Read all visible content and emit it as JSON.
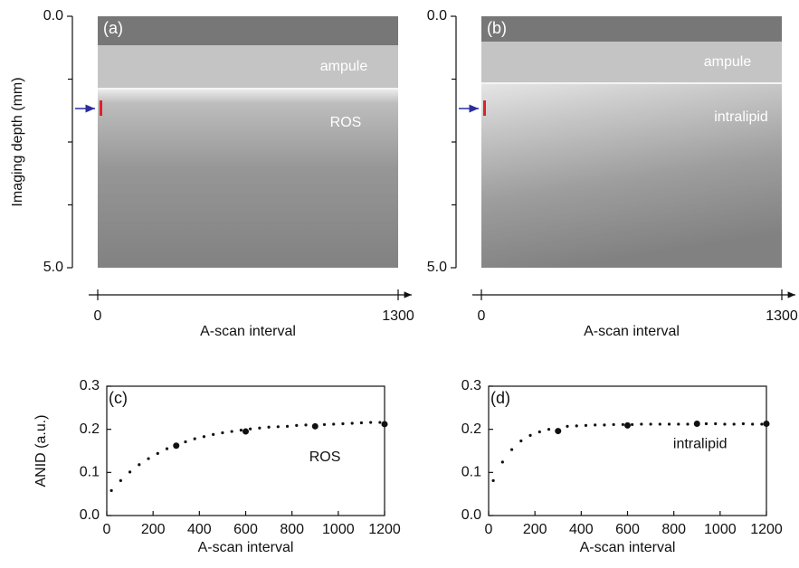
{
  "y_axis_label": "Imaging depth (mm)",
  "images": [
    {
      "label": "(a)",
      "layers": [
        "ampule",
        "ROS"
      ],
      "ylim": [
        0,
        5
      ],
      "yticks": [
        {
          "value": 0,
          "label": "0.0"
        },
        {
          "value": 5,
          "label": "5.0"
        }
      ],
      "minor_yticks": [
        1.25,
        2.5,
        3.75
      ],
      "xlim": [
        0,
        1300
      ],
      "xticks": [
        0,
        1300
      ],
      "xlabel": "A-scan interval"
    },
    {
      "label": "(b)",
      "layers": [
        "ampule",
        "intralipid"
      ],
      "ylim": [
        0,
        5
      ],
      "yticks": [
        {
          "value": 0,
          "label": "0.0"
        },
        {
          "value": 5,
          "label": "5.0"
        }
      ],
      "minor_yticks": [
        1.25,
        2.5,
        3.75
      ],
      "xlim": [
        0,
        1300
      ],
      "xticks": [
        0,
        1300
      ],
      "xlabel": "A-scan interval"
    }
  ],
  "chart_data": [
    {
      "type": "scatter",
      "label": "(c)",
      "annotation": "ROS",
      "ylabel": "ANID (a.u.)",
      "xlabel": "A-scan interval",
      "xlim": [
        0,
        1200
      ],
      "ylim": [
        0,
        0.3
      ],
      "xticks": [
        0,
        200,
        400,
        600,
        800,
        1000,
        1200
      ],
      "yticks": [
        {
          "value": 0,
          "label": "0.0"
        },
        0.1,
        0.2,
        0.3
      ],
      "series": [
        {
          "color": "#111111",
          "marker": "small",
          "x": [
            20,
            60,
            100,
            140,
            180,
            220,
            260,
            340,
            380,
            420,
            460,
            500,
            540,
            580,
            620,
            660,
            700,
            740,
            780,
            820,
            860,
            940,
            980,
            1020,
            1060,
            1100,
            1140,
            1180
          ],
          "values": [
            0.058,
            0.081,
            0.101,
            0.118,
            0.132,
            0.144,
            0.155,
            0.171,
            0.178,
            0.183,
            0.188,
            0.192,
            0.195,
            0.198,
            0.201,
            0.203,
            0.205,
            0.206,
            0.207,
            0.209,
            0.21,
            0.211,
            0.212,
            0.213,
            0.214,
            0.215,
            0.216,
            0.216
          ]
        },
        {
          "color": "#111111",
          "marker": "large",
          "x": [
            300,
            600,
            900,
            1200
          ],
          "values": [
            0.162,
            0.195,
            0.207,
            0.212
          ]
        }
      ]
    },
    {
      "type": "scatter",
      "label": "(d)",
      "annotation": "intralipid",
      "xlabel": "A-scan interval",
      "xlim": [
        0,
        1200
      ],
      "ylim": [
        0,
        0.3
      ],
      "xticks": [
        0,
        200,
        400,
        600,
        800,
        1000,
        1200
      ],
      "yticks": [
        {
          "value": 0,
          "label": "0.0"
        },
        0.1,
        0.2,
        0.3
      ],
      "series": [
        {
          "color": "#111111",
          "marker": "small",
          "x": [
            20,
            60,
            100,
            140,
            180,
            220,
            260,
            340,
            380,
            420,
            460,
            500,
            540,
            580,
            620,
            660,
            700,
            740,
            780,
            820,
            860,
            940,
            980,
            1020,
            1060,
            1100,
            1140,
            1180
          ],
          "values": [
            0.081,
            0.124,
            0.153,
            0.173,
            0.186,
            0.194,
            0.2,
            0.207,
            0.208,
            0.209,
            0.21,
            0.21,
            0.211,
            0.211,
            0.211,
            0.212,
            0.212,
            0.212,
            0.212,
            0.212,
            0.212,
            0.213,
            0.213,
            0.212,
            0.212,
            0.213,
            0.212,
            0.212
          ]
        },
        {
          "color": "#111111",
          "marker": "large",
          "x": [
            300,
            600,
            900,
            1200
          ],
          "values": [
            0.196,
            0.209,
            0.213,
            0.213
          ]
        }
      ]
    }
  ]
}
